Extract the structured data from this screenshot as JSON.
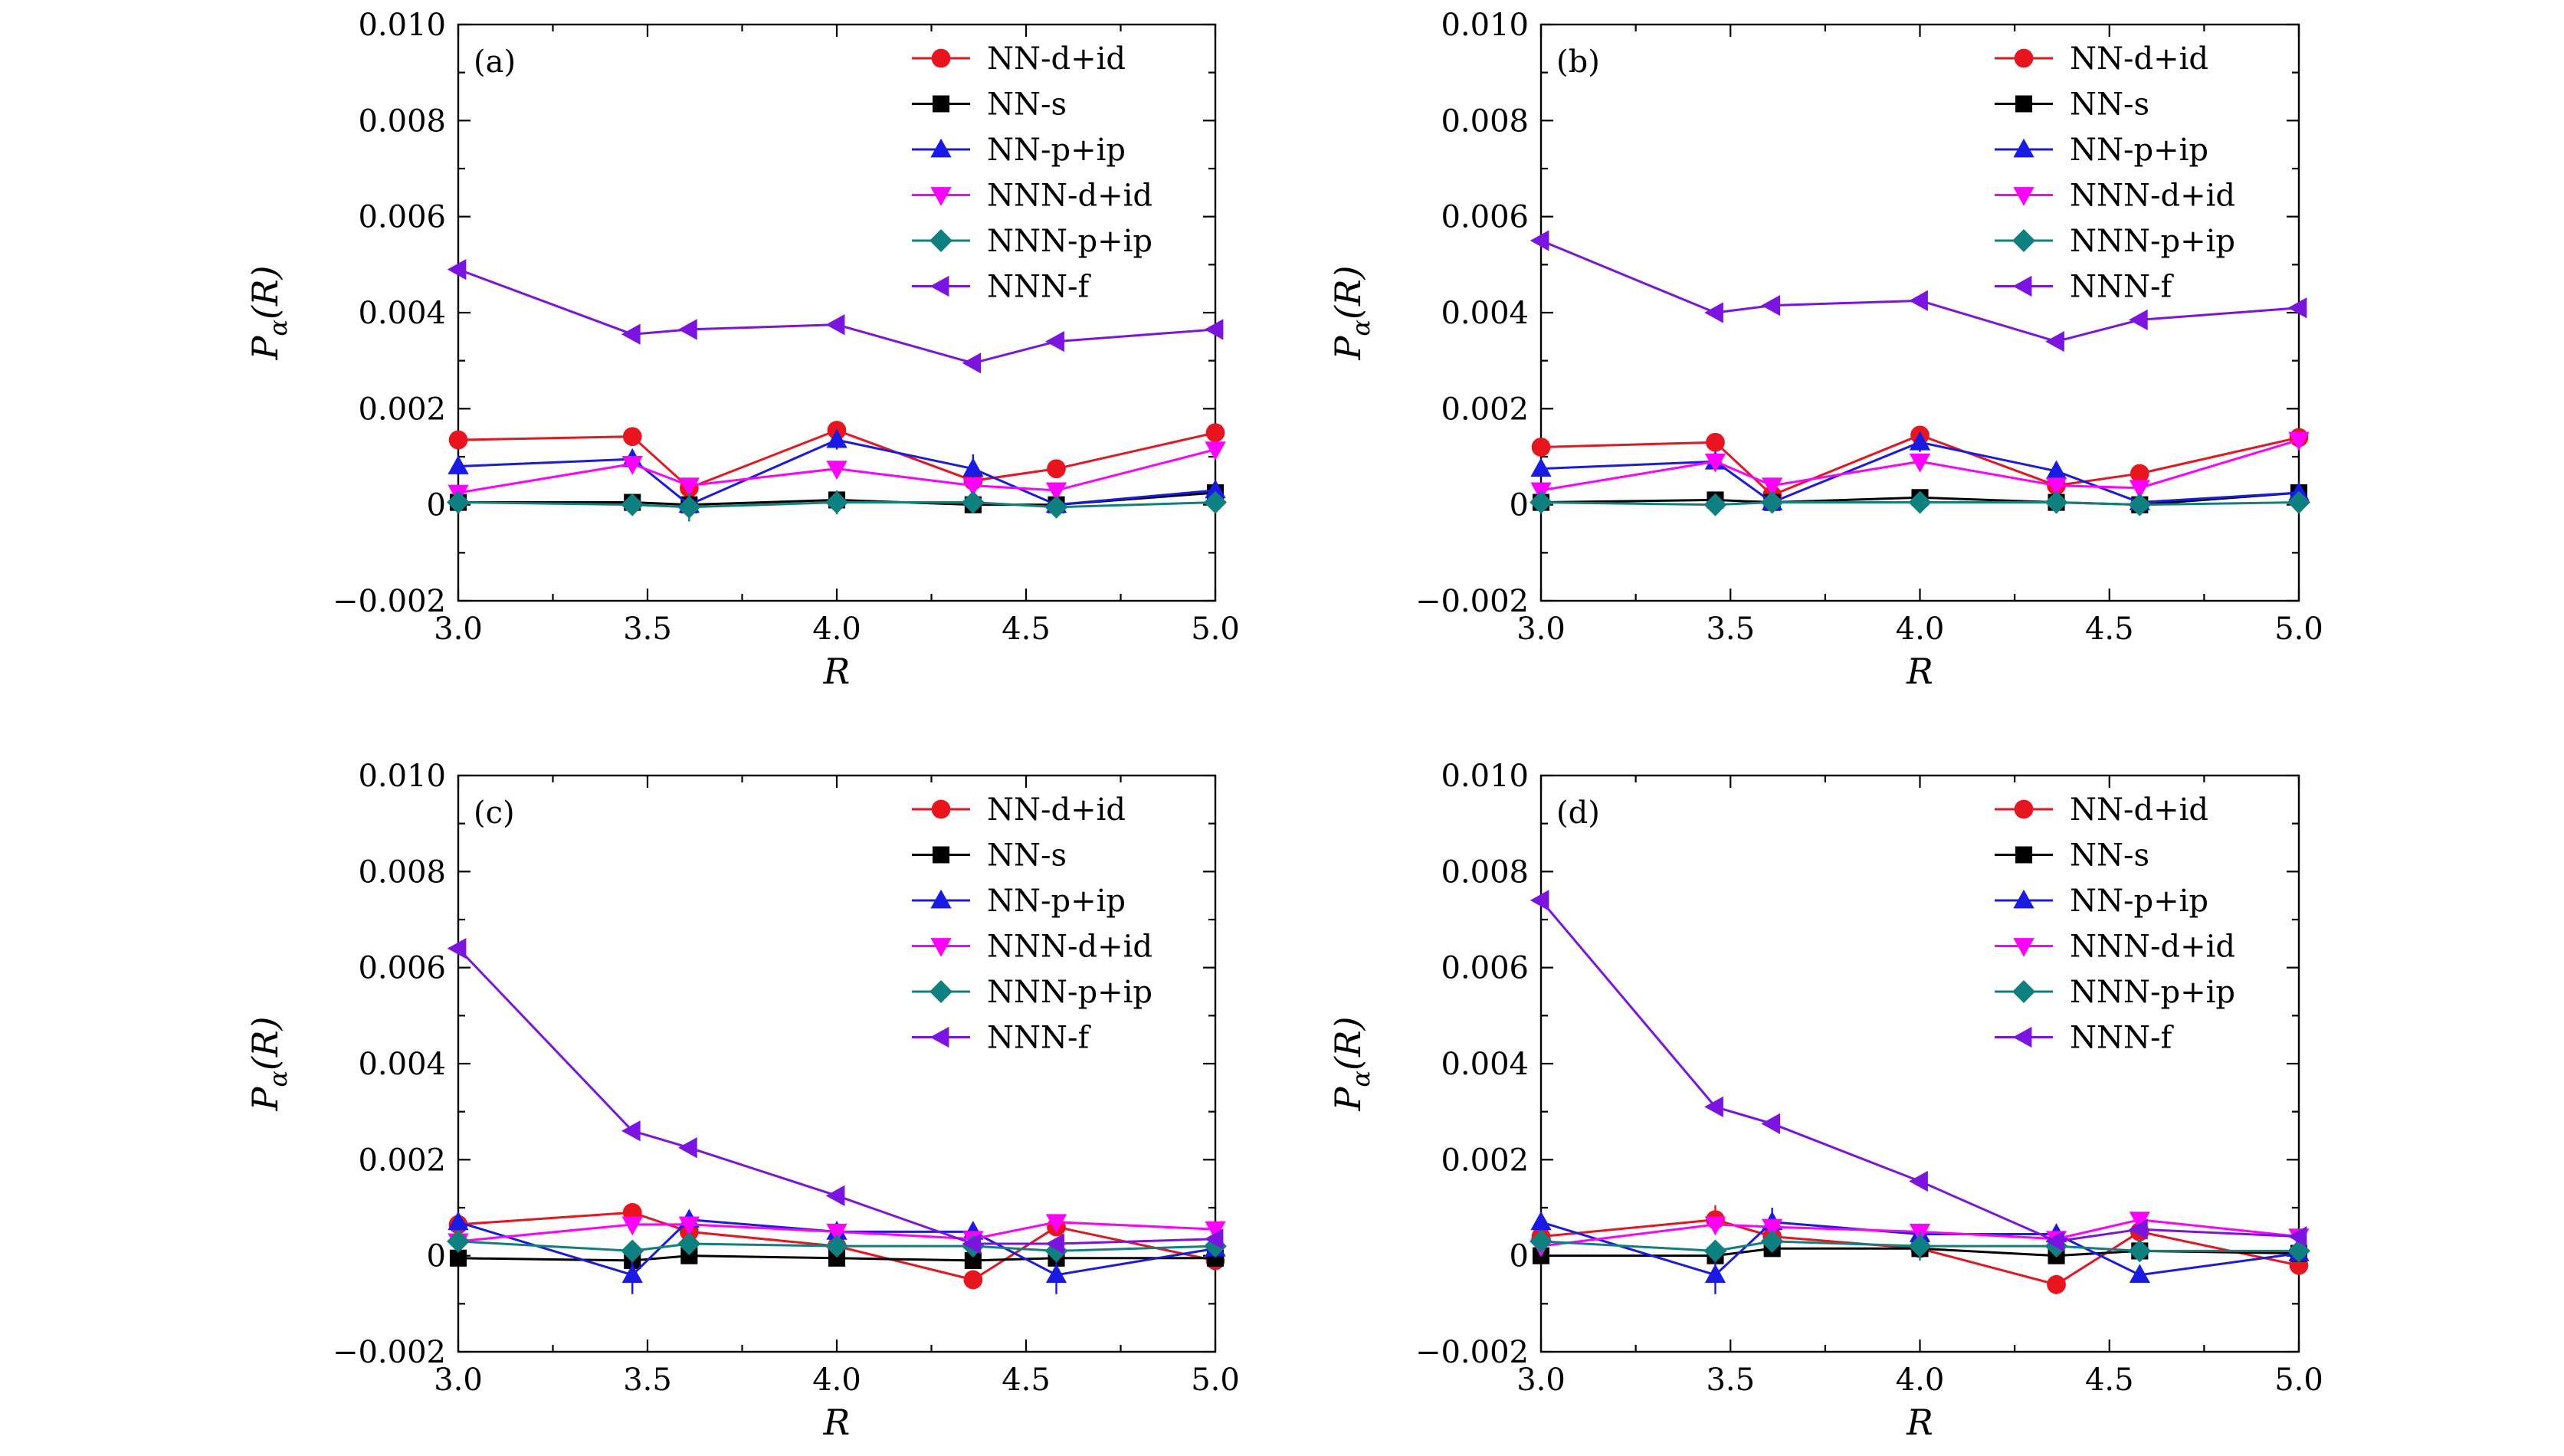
{
  "figure": {
    "type": "multi-panel line chart with error bars",
    "layout": "2x2"
  },
  "chart_data": [
    {
      "type": "line",
      "panel_label": "(a)",
      "xlabel": "R",
      "ylabel": "P_α(R)",
      "xlim": [
        3.0,
        5.0
      ],
      "ylim": [
        -0.002,
        0.01
      ],
      "xticks": [
        "3.0",
        "3.5",
        "4.0",
        "4.5",
        "5.0"
      ],
      "yticks": [
        "−0.002",
        "0",
        "0.002",
        "0.004",
        "0.006",
        "0.008",
        "0.010"
      ],
      "legend_position": "top-right",
      "x": [
        3.0,
        3.46,
        3.61,
        4.0,
        4.36,
        4.58,
        5.0
      ],
      "series": [
        {
          "name": "NN-d+id",
          "color": "#e8141e",
          "marker": "circle",
          "values": [
            0.00135,
            0.00142,
            0.00035,
            0.00155,
            0.0005,
            0.00075,
            0.0015
          ],
          "errors": [
            5e-05,
            5e-05,
            0.0001,
            0.0001,
            0.0001,
            5e-05,
            5e-05
          ]
        },
        {
          "name": "NN-s",
          "color": "#000000",
          "marker": "square",
          "values": [
            5e-05,
            5e-05,
            0.0,
            0.0001,
            0.0,
            0.0,
            0.00025
          ],
          "errors": [
            5e-05,
            5e-05,
            5e-05,
            5e-05,
            5e-05,
            5e-05,
            5e-05
          ]
        },
        {
          "name": "NN-p+ip",
          "color": "#1a1ae6",
          "marker": "triangle-up",
          "values": [
            0.0008,
            0.00095,
            0.0,
            0.00135,
            0.00075,
            0.0,
            0.0003
          ],
          "errors": [
            5e-05,
            0.0001,
            5e-05,
            0.0002,
            0.0003,
            5e-05,
            5e-05
          ]
        },
        {
          "name": "NNN-d+id",
          "color": "#ff00ff",
          "marker": "triangle-down",
          "values": [
            0.00025,
            0.00085,
            0.0004,
            0.00075,
            0.0004,
            0.0003,
            0.00115
          ],
          "errors": [
            5e-05,
            5e-05,
            5e-05,
            5e-05,
            5e-05,
            5e-05,
            5e-05
          ]
        },
        {
          "name": "NNN-p+ip",
          "color": "#0e8080",
          "marker": "diamond",
          "values": [
            5e-05,
            0.0,
            -5e-05,
            5e-05,
            5e-05,
            -5e-05,
            5e-05
          ],
          "errors": [
            5e-05,
            0.0002,
            0.0003,
            0.00025,
            0.0001,
            0.0001,
            5e-05
          ]
        },
        {
          "name": "NNN-f",
          "color": "#7b14e0",
          "marker": "triangle-left",
          "values": [
            0.0049,
            0.00355,
            0.00365,
            0.00375,
            0.00295,
            0.0034,
            0.00365
          ],
          "errors": [
            5e-05,
            0.0001,
            5e-05,
            0.0001,
            0.0001,
            5e-05,
            5e-05
          ]
        }
      ]
    },
    {
      "type": "line",
      "panel_label": "(b)",
      "xlabel": "R",
      "ylabel": "P_α(R)",
      "xlim": [
        3.0,
        5.0
      ],
      "ylim": [
        -0.002,
        0.01
      ],
      "xticks": [
        "3.0",
        "3.5",
        "4.0",
        "4.5",
        "5.0"
      ],
      "yticks": [
        "−0.002",
        "0",
        "0.002",
        "0.004",
        "0.006",
        "0.008",
        "0.010"
      ],
      "legend_position": "top-right",
      "x": [
        3.0,
        3.46,
        3.61,
        4.0,
        4.36,
        4.58,
        5.0
      ],
      "series": [
        {
          "name": "NN-d+id",
          "color": "#e8141e",
          "marker": "circle",
          "values": [
            0.0012,
            0.0013,
            0.0002,
            0.00145,
            0.0004,
            0.00065,
            0.0014
          ],
          "errors": [
            5e-05,
            5e-05,
            0.0001,
            0.0001,
            0.0001,
            5e-05,
            5e-05
          ]
        },
        {
          "name": "NN-s",
          "color": "#000000",
          "marker": "square",
          "values": [
            5e-05,
            0.0001,
            5e-05,
            0.00015,
            5e-05,
            0.0,
            0.00025
          ],
          "errors": [
            5e-05,
            5e-05,
            5e-05,
            5e-05,
            5e-05,
            5e-05,
            5e-05
          ]
        },
        {
          "name": "NN-p+ip",
          "color": "#1a1ae6",
          "marker": "triangle-up",
          "values": [
            0.00075,
            0.0009,
            5e-05,
            0.0013,
            0.0007,
            5e-05,
            0.00025
          ],
          "errors": [
            5e-05,
            0.0001,
            5e-05,
            0.0002,
            0.0001,
            5e-05,
            5e-05
          ]
        },
        {
          "name": "NNN-d+id",
          "color": "#ff00ff",
          "marker": "triangle-down",
          "values": [
            0.0003,
            0.0009,
            0.0004,
            0.0009,
            0.0004,
            0.00035,
            0.00135
          ],
          "errors": [
            5e-05,
            5e-05,
            5e-05,
            5e-05,
            5e-05,
            5e-05,
            5e-05
          ]
        },
        {
          "name": "NNN-p+ip",
          "color": "#0e8080",
          "marker": "diamond",
          "values": [
            5e-05,
            0.0,
            5e-05,
            5e-05,
            5e-05,
            0.0,
            5e-05
          ],
          "errors": [
            5e-05,
            0.0002,
            0.0002,
            0.0002,
            0.0001,
            0.0001,
            5e-05
          ]
        },
        {
          "name": "NNN-f",
          "color": "#7b14e0",
          "marker": "triangle-left",
          "values": [
            0.0055,
            0.004,
            0.00415,
            0.00425,
            0.0034,
            0.00385,
            0.0041
          ],
          "errors": [
            5e-05,
            0.0001,
            5e-05,
            0.0001,
            0.0001,
            5e-05,
            5e-05
          ]
        }
      ]
    },
    {
      "type": "line",
      "panel_label": "(c)",
      "xlabel": "R",
      "ylabel": "P_α(R)",
      "xlim": [
        3.0,
        5.0
      ],
      "ylim": [
        -0.002,
        0.01
      ],
      "xticks": [
        "3.0",
        "3.5",
        "4.0",
        "4.5",
        "5.0"
      ],
      "yticks": [
        "−0.002",
        "0",
        "0.002",
        "0.004",
        "0.006",
        "0.008",
        "0.010"
      ],
      "legend_position": "top-right",
      "x": [
        3.0,
        3.46,
        3.61,
        4.0,
        4.36,
        4.58,
        5.0
      ],
      "series": [
        {
          "name": "NN-d+id",
          "color": "#e8141e",
          "marker": "circle",
          "values": [
            0.00065,
            0.0009,
            0.0005,
            0.0002,
            -0.0005,
            0.0006,
            -0.0001
          ],
          "errors": [
            5e-05,
            0.0001,
            5e-05,
            5e-05,
            0.0002,
            0.0001,
            5e-05
          ]
        },
        {
          "name": "NN-s",
          "color": "#000000",
          "marker": "square",
          "values": [
            -5e-05,
            -0.0001,
            0.0,
            -5e-05,
            -0.0001,
            -5e-05,
            -5e-05
          ],
          "errors": [
            5e-05,
            0.0001,
            0.0001,
            0.0001,
            5e-05,
            5e-05,
            5e-05
          ]
        },
        {
          "name": "NN-p+ip",
          "color": "#1a1ae6",
          "marker": "triangle-up",
          "values": [
            0.0007,
            -0.0004,
            0.00075,
            0.0005,
            0.0005,
            -0.0004,
            0.00015
          ],
          "errors": [
            0.0001,
            0.0004,
            0.0001,
            0.0001,
            0.0001,
            0.0004,
            5e-05
          ]
        },
        {
          "name": "NNN-d+id",
          "color": "#ff00ff",
          "marker": "triangle-down",
          "values": [
            0.0003,
            0.00065,
            0.00065,
            0.0005,
            0.00035,
            0.0007,
            0.00055
          ],
          "errors": [
            5e-05,
            5e-05,
            5e-05,
            5e-05,
            5e-05,
            5e-05,
            5e-05
          ]
        },
        {
          "name": "NNN-p+ip",
          "color": "#0e8080",
          "marker": "diamond",
          "values": [
            0.0003,
            0.0001,
            0.00025,
            0.0002,
            0.0002,
            0.0001,
            0.0002
          ],
          "errors": [
            5e-05,
            0.0001,
            5e-05,
            5e-05,
            5e-05,
            5e-05,
            5e-05
          ]
        },
        {
          "name": "NNN-f",
          "color": "#7b14e0",
          "marker": "triangle-left",
          "values": [
            0.0064,
            0.0026,
            0.00225,
            0.00125,
            0.00025,
            0.00025,
            0.00035
          ],
          "errors": [
            5e-05,
            0.0001,
            0.0001,
            0.0001,
            5e-05,
            5e-05,
            5e-05
          ]
        }
      ]
    },
    {
      "type": "line",
      "panel_label": "(d)",
      "xlabel": "R",
      "ylabel": "P_α(R)",
      "xlim": [
        3.0,
        5.0
      ],
      "ylim": [
        -0.002,
        0.01
      ],
      "xticks": [
        "3.0",
        "3.5",
        "4.0",
        "4.5",
        "5.0"
      ],
      "yticks": [
        "−0.002",
        "0",
        "0.002",
        "0.004",
        "0.006",
        "0.008",
        "0.010"
      ],
      "legend_position": "top-right",
      "x": [
        3.0,
        3.46,
        3.61,
        4.0,
        4.36,
        4.58,
        5.0
      ],
      "series": [
        {
          "name": "NN-d+id",
          "color": "#e8141e",
          "marker": "circle",
          "values": [
            0.0004,
            0.00075,
            0.0004,
            0.00015,
            -0.0006,
            0.0005,
            -0.0002
          ],
          "errors": [
            5e-05,
            0.0003,
            5e-05,
            5e-05,
            0.0002,
            0.0001,
            5e-05
          ]
        },
        {
          "name": "NN-s",
          "color": "#000000",
          "marker": "square",
          "values": [
            0.0,
            0.0,
            0.00015,
            0.00015,
            0.0,
            0.0001,
            5e-05
          ],
          "errors": [
            5e-05,
            0.0001,
            0.0001,
            0.0001,
            5e-05,
            5e-05,
            5e-05
          ]
        },
        {
          "name": "NN-p+ip",
          "color": "#1a1ae6",
          "marker": "triangle-up",
          "values": [
            0.0007,
            -0.0004,
            0.0007,
            0.00045,
            0.00045,
            -0.0004,
            5e-05
          ],
          "errors": [
            0.0001,
            0.0004,
            0.0003,
            0.0001,
            0.0001,
            0.0001,
            5e-05
          ]
        },
        {
          "name": "NNN-d+id",
          "color": "#ff00ff",
          "marker": "triangle-down",
          "values": [
            0.0002,
            0.00065,
            0.0006,
            0.0005,
            0.00035,
            0.00075,
            0.0004
          ],
          "errors": [
            5e-05,
            5e-05,
            5e-05,
            5e-05,
            5e-05,
            5e-05,
            5e-05
          ]
        },
        {
          "name": "NNN-p+ip",
          "color": "#0e8080",
          "marker": "diamond",
          "values": [
            0.0003,
            0.0001,
            0.0003,
            0.0002,
            0.0002,
            0.0001,
            0.0001
          ],
          "errors": [
            5e-05,
            0.0001,
            5e-05,
            0.0003,
            5e-05,
            5e-05,
            5e-05
          ]
        },
        {
          "name": "NNN-f",
          "color": "#7b14e0",
          "marker": "triangle-left",
          "values": [
            0.0074,
            0.0031,
            0.00275,
            0.00155,
            0.0003,
            0.00055,
            0.0004
          ],
          "errors": [
            5e-05,
            0.0001,
            0.0001,
            0.0001,
            5e-05,
            5e-05,
            5e-05
          ]
        }
      ]
    }
  ]
}
